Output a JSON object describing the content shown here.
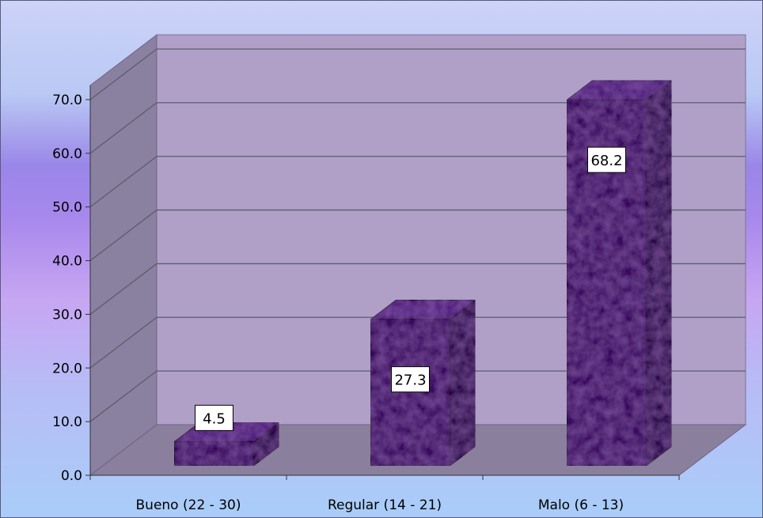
{
  "chart_data": {
    "type": "bar",
    "style": "3d-column",
    "categories": [
      "Bueno  (22 - 30)",
      "Regular (14 - 21)",
      "Malo (6 - 13)"
    ],
    "values": [
      4.5,
      27.3,
      68.2
    ],
    "data_labels": [
      "4.5",
      "27.3",
      "68.2"
    ],
    "yticks": [
      "0.0",
      "10.0",
      "20.0",
      "30.0",
      "40.0",
      "50.0",
      "60.0",
      "70.0"
    ],
    "ylim": [
      0,
      70
    ],
    "grid": true,
    "legend": "none",
    "title": "",
    "xlabel": "",
    "ylabel": ""
  },
  "colors": {
    "bar_front": "#3a1060",
    "bar_side": "#2a0848",
    "bar_top": "#4e1a7a",
    "back_wall": "#b0a0c8",
    "side_wall": "#8a80a0",
    "floor": "#8a7f9c",
    "grid": "#5c5c6e"
  }
}
